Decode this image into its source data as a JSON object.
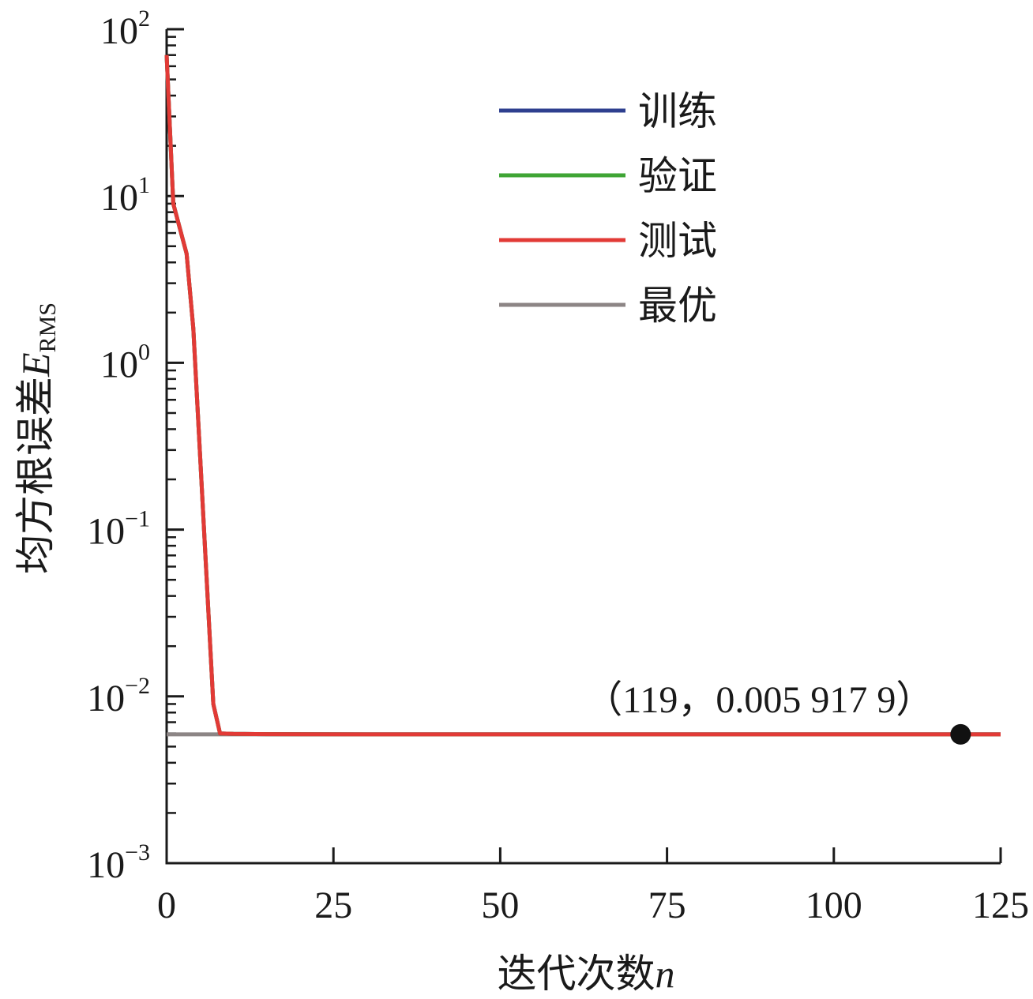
{
  "chart_data": {
    "type": "line",
    "title": "",
    "xlabel": "迭代次数",
    "xlabel_var": "n",
    "ylabel": "均方根误差",
    "ylabel_var": "E",
    "ylabel_sub": "RMS",
    "x_ticks": [
      "0",
      "25",
      "50",
      "75",
      "100",
      "125"
    ],
    "x_tick_values": [
      0,
      25,
      50,
      75,
      100,
      125
    ],
    "xlim": [
      0,
      125
    ],
    "y_scale": "log",
    "ylim": [
      0.001,
      100
    ],
    "y_ticks": [
      {
        "value": 100,
        "base": "10",
        "exp": "2"
      },
      {
        "value": 10,
        "base": "10",
        "exp": "1"
      },
      {
        "value": 1,
        "base": "10",
        "exp": "0"
      },
      {
        "value": 0.1,
        "base": "10",
        "exp": "−1"
      },
      {
        "value": 0.01,
        "base": "10",
        "exp": "−2"
      },
      {
        "value": 0.001,
        "base": "10",
        "exp": "−3"
      }
    ],
    "grid": false,
    "legend_position": "top-right",
    "series": [
      {
        "name": "训练",
        "color": "#2e3f8f",
        "x": [
          0,
          1,
          3,
          4,
          7,
          8,
          10,
          15,
          30,
          60,
          90,
          119,
          125
        ],
        "y": [
          70,
          9,
          4.5,
          1.6,
          0.009,
          0.006,
          0.00596,
          0.00594,
          0.00592,
          0.00592,
          0.00592,
          0.0059179,
          0.0059179
        ]
      },
      {
        "name": "验证",
        "color": "#3fa535",
        "x": [
          0,
          1,
          3,
          4,
          7,
          8,
          10,
          15,
          30,
          60,
          90,
          119,
          125
        ],
        "y": [
          70,
          9,
          4.5,
          1.6,
          0.009,
          0.006,
          0.00596,
          0.00594,
          0.00592,
          0.00592,
          0.00592,
          0.0059179,
          0.0059179
        ]
      },
      {
        "name": "测试",
        "color": "#e23a36",
        "x": [
          0,
          1,
          3,
          4,
          7,
          8,
          10,
          15,
          30,
          60,
          90,
          119,
          125
        ],
        "y": [
          70,
          9,
          4.5,
          1.6,
          0.009,
          0.006,
          0.00596,
          0.00594,
          0.00592,
          0.00592,
          0.00592,
          0.0059179,
          0.0059179
        ]
      },
      {
        "name": "最优",
        "color": "#8c8585",
        "x": [
          0,
          125
        ],
        "y": [
          0.0059179,
          0.0059179
        ]
      }
    ],
    "best_point": {
      "x": 119,
      "y": 0.0059179,
      "label": "（119，0.005 917 9）",
      "color": "#111111"
    }
  }
}
